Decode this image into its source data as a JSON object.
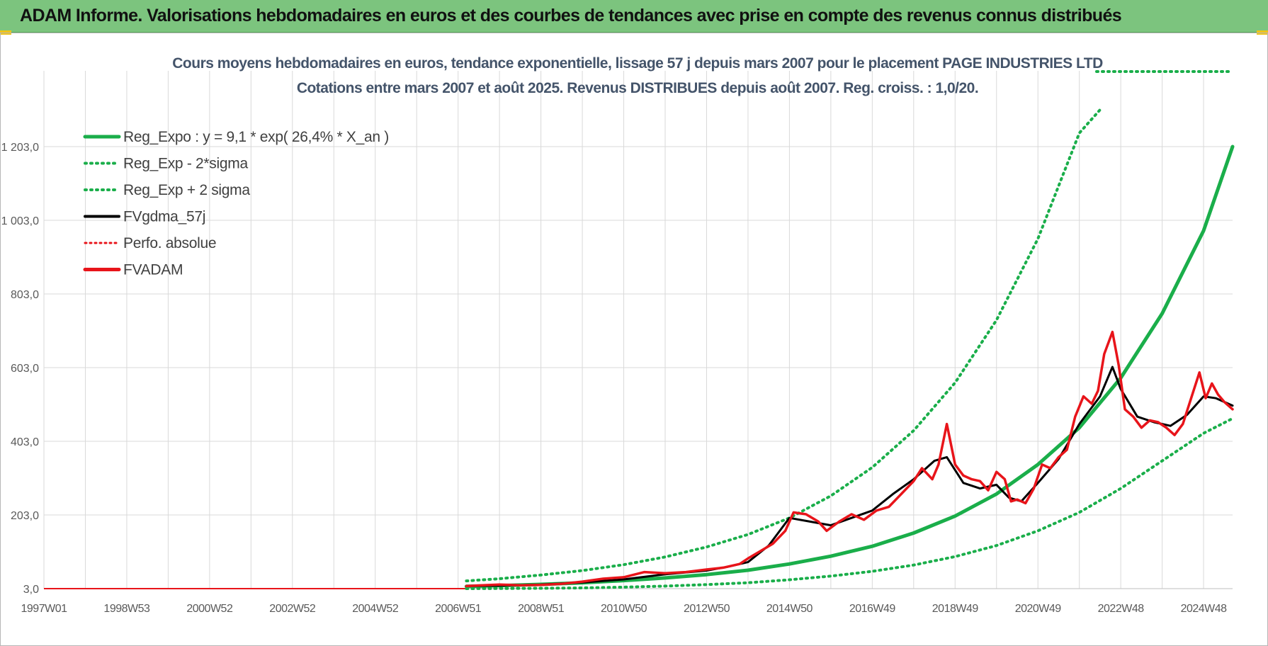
{
  "header": {
    "title": "ADAM Informe. Valorisations hebdomadaires en euros et des courbes de tendances avec prise en compte des revenus connus distribués"
  },
  "colors": {
    "header_bg": "#7cc47e",
    "reg_expo": "#1aae4a",
    "sigma_bands": "#1aae4a",
    "fvgdma": "#000000",
    "perfo": "#e8141a",
    "fvadam": "#e8141a",
    "grid": "#d9d9d9",
    "title": "#44546a"
  },
  "chart_data": {
    "type": "line",
    "title": "Cours moyens hebdomadaires en euros, tendance exponentielle, lissage 57 j depuis mars 2007 pour le placement PAGE INDUSTRIES LTD",
    "subtitle": "Cotations entre mars 2007 et août 2025. Revenus DISTRIBUES depuis août 2007. Reg. croiss. : 1,0/20.",
    "xlabel": "",
    "ylabel": "",
    "x_tick_labels": [
      "1997W01",
      "1998W53",
      "2000W52",
      "2002W52",
      "2004W52",
      "2006W51",
      "2008W51",
      "2010W50",
      "2012W50",
      "2014W50",
      "2016W49",
      "2018W49",
      "2020W49",
      "2022W48",
      "2024W48"
    ],
    "y_tick_labels": [
      "3,0",
      "203,0",
      "403,0",
      "603,0",
      "803,0",
      "1 003,0",
      "1 203,0"
    ],
    "y_ticks": [
      3,
      203,
      403,
      603,
      803,
      1003,
      1203
    ],
    "ylim": [
      3,
      1303
    ],
    "xlim_years": [
      1997.0,
      2025.7
    ],
    "grid": true,
    "legend_position": "top-left",
    "legend": [
      {
        "label": "Reg_Expo : y = 9,1 * exp( 26,4% *  X_an )",
        "style": "solid-thick",
        "color": "#1aae4a"
      },
      {
        "label": "Reg_Exp - 2*sigma",
        "style": "dotted",
        "color": "#1aae4a"
      },
      {
        "label": "Reg_Exp + 2 sigma",
        "style": "dotted",
        "color": "#1aae4a"
      },
      {
        "label": "FVgdma_57j",
        "style": "solid",
        "color": "#000000"
      },
      {
        "label": "Perfo. absolue",
        "style": "dotted",
        "color": "#e8141a"
      },
      {
        "label": "FVADAM",
        "style": "solid",
        "color": "#e8141a"
      }
    ],
    "series": [
      {
        "name": "Reg_Expo : y = 9,1 * exp( 26,4% *  X_an )",
        "x": [
          2007.2,
          2008.0,
          2009.0,
          2010.0,
          2011.0,
          2012.0,
          2013.0,
          2014.0,
          2015.0,
          2016.0,
          2017.0,
          2018.0,
          2019.0,
          2020.0,
          2021.0,
          2022.0,
          2023.0,
          2024.0,
          2025.0,
          2025.7
        ],
        "y": [
          9.1,
          11.3,
          14.5,
          19,
          25,
          32,
          41,
          53,
          70,
          91,
          118,
          154,
          200,
          260,
          340,
          440,
          575,
          750,
          975,
          1203
        ]
      },
      {
        "name": "Reg_Exp - 2*sigma",
        "x": [
          2007.2,
          2009.0,
          2010.0,
          2011.0,
          2012.0,
          2013.0,
          2014.0,
          2015.0,
          2016.0,
          2017.0,
          2018.0,
          2019.0,
          2020.0,
          2021.0,
          2022.0,
          2023.0,
          2024.0,
          2025.0,
          2025.7
        ],
        "y": [
          1,
          4,
          5,
          7,
          10,
          14,
          19,
          27,
          37,
          50,
          67,
          90,
          120,
          160,
          210,
          275,
          350,
          425,
          465
        ]
      },
      {
        "name": "Reg_Exp + 2 sigma",
        "x": [
          2007.2,
          2008.0,
          2009.0,
          2010.0,
          2011.0,
          2012.0,
          2013.0,
          2014.0,
          2015.0,
          2016.0,
          2017.0,
          2018.0,
          2019.0,
          2020.0,
          2021.0,
          2022.0,
          2022.5
        ],
        "y": [
          24,
          30,
          40,
          52,
          68,
          89,
          116,
          150,
          195,
          255,
          332,
          432,
          562,
          732,
          953,
          1240,
          1303
        ]
      },
      {
        "name": "FVgdma_57j",
        "x": [
          2007.2,
          2008.0,
          2009.0,
          2010.0,
          2011.0,
          2012.0,
          2013.0,
          2013.5,
          2014.0,
          2014.5,
          2015.0,
          2015.5,
          2016.0,
          2016.5,
          2017.0,
          2017.5,
          2018.0,
          2018.5,
          2018.8,
          2019.2,
          2019.6,
          2020.0,
          2020.3,
          2020.6,
          2021.0,
          2021.5,
          2022.0,
          2022.5,
          2022.8,
          2023.0,
          2023.4,
          2023.8,
          2024.2,
          2024.6,
          2025.0,
          2025.3,
          2025.7
        ],
        "y": [
          10,
          11,
          14,
          20,
          28,
          42,
          52,
          62,
          75,
          120,
          195,
          185,
          175,
          195,
          215,
          260,
          300,
          350,
          360,
          290,
          275,
          285,
          250,
          240,
          290,
          355,
          450,
          525,
          605,
          545,
          470,
          455,
          445,
          475,
          525,
          520,
          500
        ]
      },
      {
        "name": "FVADAM",
        "x": [
          2007.2,
          2007.6,
          2008.0,
          2008.5,
          2009.0,
          2009.5,
          2010.0,
          2010.5,
          2011.0,
          2011.5,
          2012.0,
          2012.5,
          2013.0,
          2013.4,
          2013.8,
          2014.0,
          2014.3,
          2014.6,
          2014.9,
          2015.1,
          2015.4,
          2015.7,
          2015.9,
          2016.2,
          2016.5,
          2016.8,
          2017.1,
          2017.4,
          2017.7,
          2018.0,
          2018.2,
          2018.45,
          2018.6,
          2018.8,
          2019.0,
          2019.2,
          2019.4,
          2019.6,
          2019.8,
          2020.0,
          2020.2,
          2020.35,
          2020.5,
          2020.7,
          2020.9,
          2021.1,
          2021.3,
          2021.5,
          2021.7,
          2021.9,
          2022.1,
          2022.3,
          2022.45,
          2022.6,
          2022.8,
          2022.95,
          2023.1,
          2023.3,
          2023.5,
          2023.7,
          2023.9,
          2024.1,
          2024.3,
          2024.5,
          2024.7,
          2024.9,
          2025.05,
          2025.2,
          2025.35,
          2025.5,
          2025.7
        ],
        "y": [
          10,
          12,
          14,
          12,
          13,
          16,
          22,
          30,
          34,
          48,
          45,
          48,
          55,
          60,
          70,
          85,
          105,
          125,
          160,
          210,
          205,
          185,
          160,
          185,
          205,
          190,
          215,
          225,
          260,
          295,
          330,
          300,
          340,
          450,
          340,
          310,
          300,
          295,
          270,
          320,
          300,
          240,
          245,
          235,
          275,
          340,
          330,
          360,
          380,
          470,
          525,
          505,
          540,
          640,
          700,
          610,
          490,
          470,
          440,
          460,
          455,
          440,
          420,
          450,
          520,
          590,
          520,
          560,
          530,
          510,
          490
        ]
      }
    ]
  }
}
